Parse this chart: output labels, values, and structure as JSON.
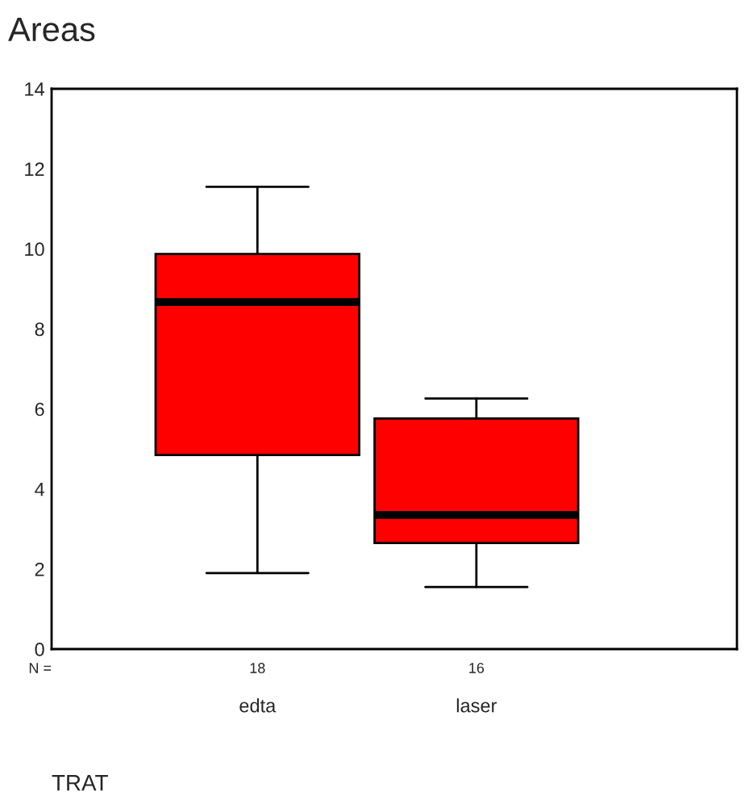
{
  "chart_data": {
    "type": "box",
    "title": "Areas",
    "xlabel": "TRAT",
    "categories": [
      "edta",
      "laser"
    ],
    "boxes": [
      {
        "low": 1.9,
        "q1": 4.85,
        "median": 8.67,
        "q3": 9.87,
        "high": 11.55
      },
      {
        "low": 1.55,
        "q1": 2.65,
        "median": 3.35,
        "q3": 5.76,
        "high": 6.26
      }
    ],
    "color": "#ff0000",
    "ylim": [
      0,
      14
    ],
    "yticks": [
      0,
      2,
      4,
      6,
      8,
      10,
      12,
      14
    ],
    "grid": false,
    "annotations": [
      "N =",
      "18",
      "16"
    ]
  }
}
